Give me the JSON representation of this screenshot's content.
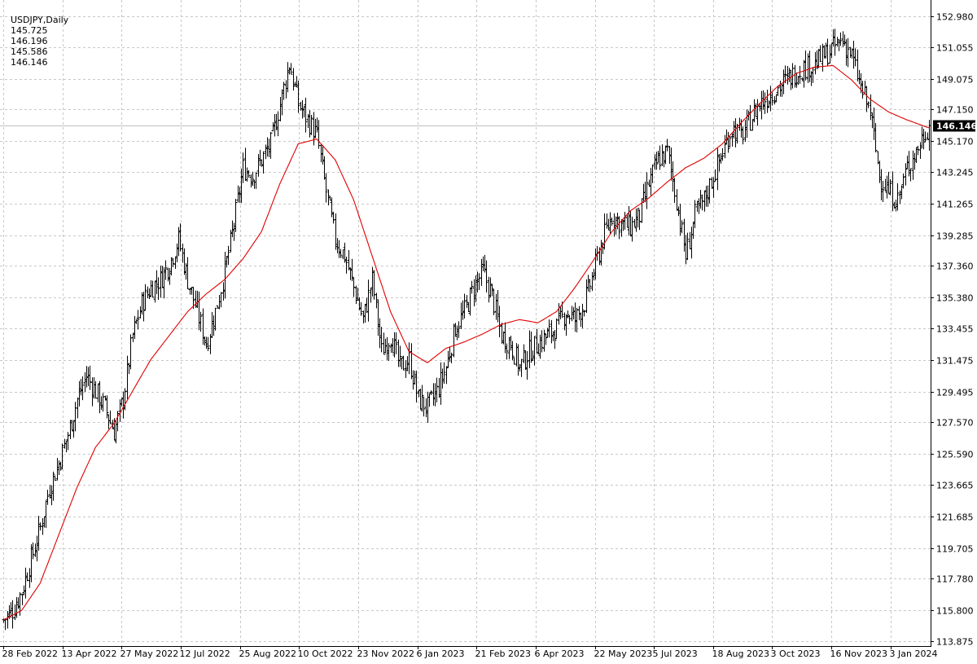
{
  "header": {
    "symbol": "USDJPY,Daily",
    "open": "145.725",
    "high": "146.196",
    "low": "145.586",
    "close": "146.146"
  },
  "colors": {
    "background": "#ffffff",
    "grid": "#c8c8c8",
    "bars": "#000000",
    "ma_line": "#e00000",
    "current_price_line": "#c0c0c0",
    "price_tag_bg": "#000000"
  },
  "chart_data": {
    "type": "ohlc",
    "grid": true,
    "y_axis": {
      "side": "right",
      "ticks": [
        "152.980",
        "151.055",
        "149.075",
        "147.150",
        "145.170",
        "143.245",
        "141.265",
        "139.285",
        "137.360",
        "135.380",
        "133.455",
        "131.475",
        "129.495",
        "127.570",
        "125.590",
        "123.665",
        "121.685",
        "119.705",
        "117.780",
        "115.800",
        "113.875"
      ],
      "ylim": [
        113.875,
        152.98
      ]
    },
    "x_axis": {
      "ticks": [
        "28 Feb 2022",
        "13 Apr 2022",
        "27 May 2022",
        "12 Jul 2022",
        "25 Aug 2022",
        "10 Oct 2022",
        "23 Nov 2022",
        "6 Jan 2023",
        "21 Feb 2023",
        "6 Apr 2023",
        "22 May 2023",
        "5 Jul 2023",
        "18 Aug 2023",
        "3 Oct 2023",
        "16 Nov 2023",
        "3 Jan 2024"
      ]
    },
    "current_price": "146.146",
    "price_anchors": [
      [
        0,
        115.2
      ],
      [
        5,
        115.8
      ],
      [
        10,
        117.0
      ],
      [
        15,
        119.0
      ],
      [
        20,
        121.0
      ],
      [
        25,
        123.5
      ],
      [
        30,
        125.0
      ],
      [
        35,
        126.8
      ],
      [
        40,
        129.0
      ],
      [
        45,
        130.5
      ],
      [
        50,
        129.5
      ],
      [
        55,
        128.5
      ],
      [
        60,
        127.0
      ],
      [
        65,
        129.0
      ],
      [
        70,
        133.0
      ],
      [
        75,
        135.0
      ],
      [
        80,
        136.0
      ],
      [
        85,
        136.5
      ],
      [
        90,
        137.5
      ],
      [
        95,
        139.0
      ],
      [
        100,
        136.5
      ],
      [
        105,
        134.5
      ],
      [
        110,
        132.5
      ],
      [
        115,
        134.5
      ],
      [
        120,
        137.0
      ],
      [
        125,
        140.0
      ],
      [
        130,
        143.5
      ],
      [
        135,
        143.0
      ],
      [
        140,
        144.0
      ],
      [
        145,
        145.0
      ],
      [
        150,
        147.5
      ],
      [
        155,
        150.0
      ],
      [
        160,
        147.5
      ],
      [
        165,
        146.5
      ],
      [
        170,
        145.5
      ],
      [
        175,
        142.0
      ],
      [
        180,
        139.0
      ],
      [
        185,
        138.0
      ],
      [
        190,
        136.0
      ],
      [
        195,
        134.0
      ],
      [
        200,
        136.5
      ],
      [
        205,
        132.0
      ],
      [
        210,
        133.0
      ],
      [
        215,
        131.0
      ],
      [
        220,
        131.5
      ],
      [
        225,
        129.0
      ],
      [
        230,
        128.5
      ],
      [
        235,
        129.5
      ],
      [
        240,
        131.0
      ],
      [
        245,
        133.5
      ],
      [
        250,
        134.5
      ],
      [
        255,
        136.0
      ],
      [
        260,
        137.0
      ],
      [
        265,
        135.5
      ],
      [
        270,
        133.0
      ],
      [
        275,
        132.5
      ],
      [
        280,
        131.0
      ],
      [
        285,
        132.0
      ],
      [
        290,
        132.5
      ],
      [
        295,
        133.0
      ],
      [
        300,
        133.5
      ],
      [
        305,
        134.5
      ],
      [
        310,
        134.0
      ],
      [
        315,
        135.0
      ],
      [
        320,
        137.0
      ],
      [
        325,
        139.0
      ],
      [
        330,
        140.5
      ],
      [
        335,
        140.0
      ],
      [
        340,
        139.8
      ],
      [
        345,
        140.5
      ],
      [
        350,
        142.5
      ],
      [
        355,
        144.0
      ],
      [
        360,
        144.5
      ],
      [
        365,
        141.5
      ],
      [
        370,
        138.0
      ],
      [
        375,
        140.5
      ],
      [
        380,
        141.5
      ],
      [
        385,
        143.0
      ],
      [
        390,
        144.5
      ],
      [
        395,
        146.0
      ],
      [
        400,
        145.5
      ],
      [
        405,
        146.5
      ],
      [
        410,
        147.5
      ],
      [
        415,
        148.0
      ],
      [
        420,
        148.5
      ],
      [
        425,
        149.0
      ],
      [
        430,
        149.5
      ],
      [
        435,
        149.8
      ],
      [
        440,
        150.0
      ],
      [
        445,
        150.5
      ],
      [
        450,
        151.0
      ],
      [
        455,
        151.5
      ],
      [
        460,
        150.5
      ],
      [
        465,
        148.5
      ],
      [
        470,
        147.0
      ],
      [
        475,
        143.0
      ],
      [
        480,
        142.0
      ],
      [
        485,
        141.5
      ],
      [
        490,
        143.5
      ],
      [
        495,
        144.5
      ],
      [
        500,
        145.8
      ],
      [
        502,
        146.146
      ]
    ],
    "ma_anchors": [
      [
        0,
        115.2
      ],
      [
        10,
        115.8
      ],
      [
        20,
        117.5
      ],
      [
        30,
        120.5
      ],
      [
        40,
        123.5
      ],
      [
        50,
        126.0
      ],
      [
        60,
        127.5
      ],
      [
        70,
        129.5
      ],
      [
        80,
        131.5
      ],
      [
        90,
        133.0
      ],
      [
        100,
        134.5
      ],
      [
        110,
        135.6
      ],
      [
        120,
        136.5
      ],
      [
        130,
        137.8
      ],
      [
        140,
        139.5
      ],
      [
        150,
        142.5
      ],
      [
        160,
        145.0
      ],
      [
        170,
        145.3
      ],
      [
        180,
        144.0
      ],
      [
        190,
        141.5
      ],
      [
        200,
        138.0
      ],
      [
        210,
        134.5
      ],
      [
        220,
        132.0
      ],
      [
        230,
        131.3
      ],
      [
        240,
        132.2
      ],
      [
        250,
        132.6
      ],
      [
        260,
        133.1
      ],
      [
        270,
        133.7
      ],
      [
        280,
        134.0
      ],
      [
        290,
        133.8
      ],
      [
        300,
        134.5
      ],
      [
        310,
        136.0
      ],
      [
        320,
        137.7
      ],
      [
        330,
        139.5
      ],
      [
        340,
        140.8
      ],
      [
        350,
        141.6
      ],
      [
        360,
        142.6
      ],
      [
        370,
        143.5
      ],
      [
        380,
        144.1
      ],
      [
        390,
        145.0
      ],
      [
        400,
        146.3
      ],
      [
        410,
        147.5
      ],
      [
        420,
        148.6
      ],
      [
        430,
        149.4
      ],
      [
        440,
        149.8
      ],
      [
        450,
        149.9
      ],
      [
        460,
        149.0
      ],
      [
        470,
        147.8
      ],
      [
        480,
        147.0
      ],
      [
        490,
        146.5
      ],
      [
        502,
        146.0
      ]
    ]
  }
}
